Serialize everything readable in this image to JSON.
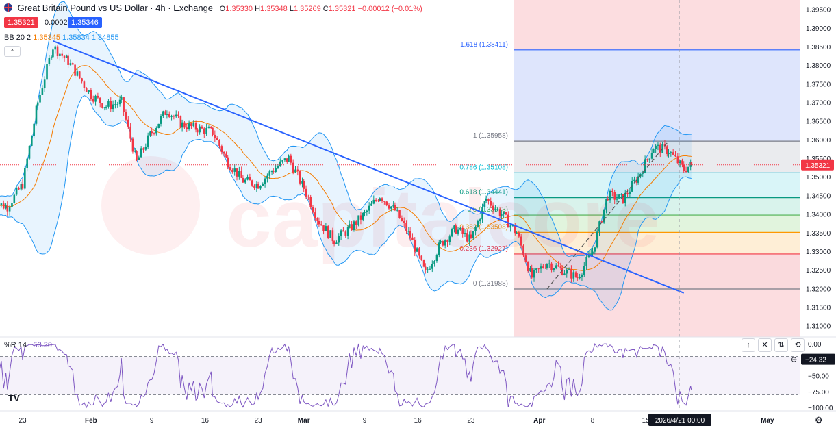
{
  "header": {
    "title": "Great Britain Pound vs US Dollar · 4h · Exchange",
    "ohlc": [
      {
        "k": "O",
        "v": "1.35330"
      },
      {
        "k": "H",
        "v": "1.35348"
      },
      {
        "k": "L",
        "v": "1.35269"
      },
      {
        "k": "C",
        "v": "1.35321"
      },
      {
        "k": "",
        "v": "−0.00012 (−0.01%)"
      }
    ]
  },
  "quote": {
    "bid": "1.35321",
    "spread": "0.00025",
    "ask": "1.35346"
  },
  "indicator": {
    "label": "BB 20 2",
    "basis": "1.35345",
    "upper": "1.35834",
    "lower": "1.34855"
  },
  "oscillator": {
    "label": "%R 14",
    "value": "−53.20",
    "last_label": "−24.32",
    "levels": [
      "0.00",
      "−50.00",
      "−75.00",
      "−100.00"
    ]
  },
  "watermark": "capitalcore",
  "current_price": "1.35321",
  "time_cursor": "2026/4/21  00:00",
  "x_labels": [
    "23",
    "Feb",
    "9",
    "16",
    "23",
    "Mar",
    "9",
    "16",
    "23",
    "Apr",
    "8",
    "15",
    "May"
  ],
  "y_labels": [
    "1.39500",
    "1.39000",
    "1.38500",
    "1.38000",
    "1.37500",
    "1.37000",
    "1.36500",
    "1.36000",
    "1.35500",
    "1.35000",
    "1.34500",
    "1.34000",
    "1.33500",
    "1.33000",
    "1.32500",
    "1.32000",
    "1.31500",
    "1.31000"
  ],
  "tools": [
    "↑",
    "✕",
    "⇅",
    "⟲"
  ],
  "chart_data": {
    "type": "candlestick",
    "title": "Great Britain Pound vs US Dollar · 4h · Exchange",
    "ylim": [
      1.307,
      1.3975
    ],
    "x_range": [
      "Jan 19",
      "May 5"
    ],
    "close_path": [
      {
        "x": "Jan 19",
        "y": 1.343
      },
      {
        "x": "Jan 21",
        "y": 1.342
      },
      {
        "x": "Jan 23",
        "y": 1.348
      },
      {
        "x": "Jan 25",
        "y": 1.37
      },
      {
        "x": "Jan 27",
        "y": 1.385
      },
      {
        "x": "Jan 29",
        "y": 1.381
      },
      {
        "x": "Feb 1",
        "y": 1.372
      },
      {
        "x": "Feb 3",
        "y": 1.369
      },
      {
        "x": "Feb 5",
        "y": 1.37
      },
      {
        "x": "Feb 7",
        "y": 1.354
      },
      {
        "x": "Feb 9",
        "y": 1.362
      },
      {
        "x": "Feb 11",
        "y": 1.368
      },
      {
        "x": "Feb 13",
        "y": 1.364
      },
      {
        "x": "Feb 15",
        "y": 1.363
      },
      {
        "x": "Feb 17",
        "y": 1.362
      },
      {
        "x": "Feb 19",
        "y": 1.354
      },
      {
        "x": "Feb 21",
        "y": 1.349
      },
      {
        "x": "Feb 23",
        "y": 1.348
      },
      {
        "x": "Feb 25",
        "y": 1.352
      },
      {
        "x": "Feb 27",
        "y": 1.355
      },
      {
        "x": "Mar 1",
        "y": 1.347
      },
      {
        "x": "Mar 3",
        "y": 1.338
      },
      {
        "x": "Mar 5",
        "y": 1.333
      },
      {
        "x": "Mar 7",
        "y": 1.336
      },
      {
        "x": "Mar 9",
        "y": 1.34
      },
      {
        "x": "Mar 11",
        "y": 1.345
      },
      {
        "x": "Mar 13",
        "y": 1.341
      },
      {
        "x": "Mar 15",
        "y": 1.334
      },
      {
        "x": "Mar 17",
        "y": 1.324
      },
      {
        "x": "Mar 19",
        "y": 1.332
      },
      {
        "x": "Mar 21",
        "y": 1.336
      },
      {
        "x": "Mar 23",
        "y": 1.333
      },
      {
        "x": "Mar 25",
        "y": 1.344
      },
      {
        "x": "Mar 27",
        "y": 1.34
      },
      {
        "x": "Mar 29",
        "y": 1.335
      },
      {
        "x": "Mar 31",
        "y": 1.323
      },
      {
        "x": "Apr 2",
        "y": 1.327
      },
      {
        "x": "Apr 4",
        "y": 1.325
      },
      {
        "x": "Apr 6",
        "y": 1.323
      },
      {
        "x": "Apr 8",
        "y": 1.33
      },
      {
        "x": "Apr 10",
        "y": 1.345
      },
      {
        "x": "Apr 12",
        "y": 1.344
      },
      {
        "x": "Apr 14",
        "y": 1.35
      },
      {
        "x": "Apr 16",
        "y": 1.358
      },
      {
        "x": "Apr 18",
        "y": 1.357
      },
      {
        "x": "Apr 20",
        "y": 1.352
      },
      {
        "x": "Apr 21",
        "y": 1.3532
      }
    ],
    "trendline": {
      "from": {
        "x": "Jan 27",
        "y": 1.3865
      },
      "to": {
        "x": "Apr 20",
        "y": 1.3188
      }
    },
    "fibonacci": [
      {
        "label": "0 (1.31988)",
        "value": 1.31988,
        "color": "#787b86"
      },
      {
        "label": "0.236 (1.32927)",
        "value": 1.32927,
        "color": "#f23645"
      },
      {
        "label": "0.382 (1.33508)",
        "value": 1.33508,
        "color": "#ff9800"
      },
      {
        "label": "0.5 (1.33973)",
        "value": 1.33973,
        "color": "#4caf50"
      },
      {
        "label": "0.618 (1.34441)",
        "value": 1.34441,
        "color": "#089981"
      },
      {
        "label": "0.786 (1.35108)",
        "value": 1.35108,
        "color": "#00bcd4"
      },
      {
        "label": "1 (1.35958)",
        "value": 1.35958,
        "color": "#787b86"
      },
      {
        "label": "1.618 (1.38411)",
        "value": 1.38411,
        "color": "#2962ff"
      }
    ],
    "colors": {
      "up": "#089981",
      "down": "#f23645",
      "bb_band": "#2196f3",
      "bb_basis": "#f57c00",
      "trend": "#2962ff",
      "osc": "#7e57c2"
    }
  }
}
